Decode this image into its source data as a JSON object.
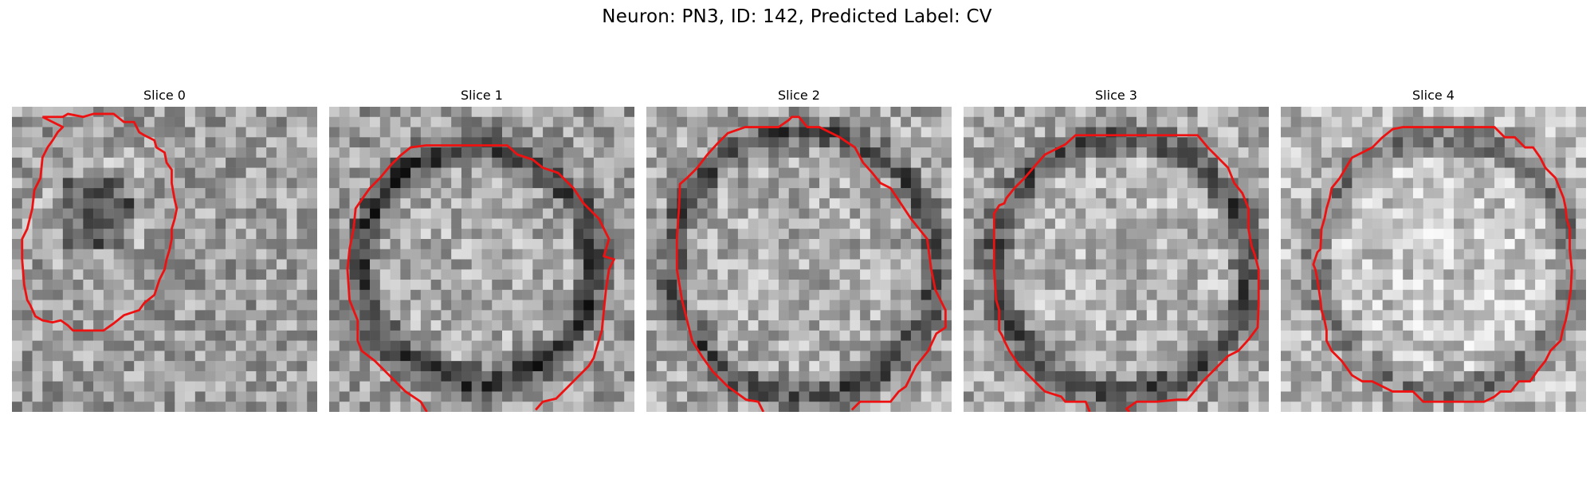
{
  "figure": {
    "title": "Neuron: PN3, ID: 142, Predicted Label: CV",
    "contour_color": "#ee1111",
    "colormap": "gray"
  },
  "slices": [
    {
      "label": "Slice 0"
    },
    {
      "label": "Slice 1"
    },
    {
      "label": "Slice 2"
    },
    {
      "label": "Slice 3"
    },
    {
      "label": "Slice 4"
    }
  ]
}
